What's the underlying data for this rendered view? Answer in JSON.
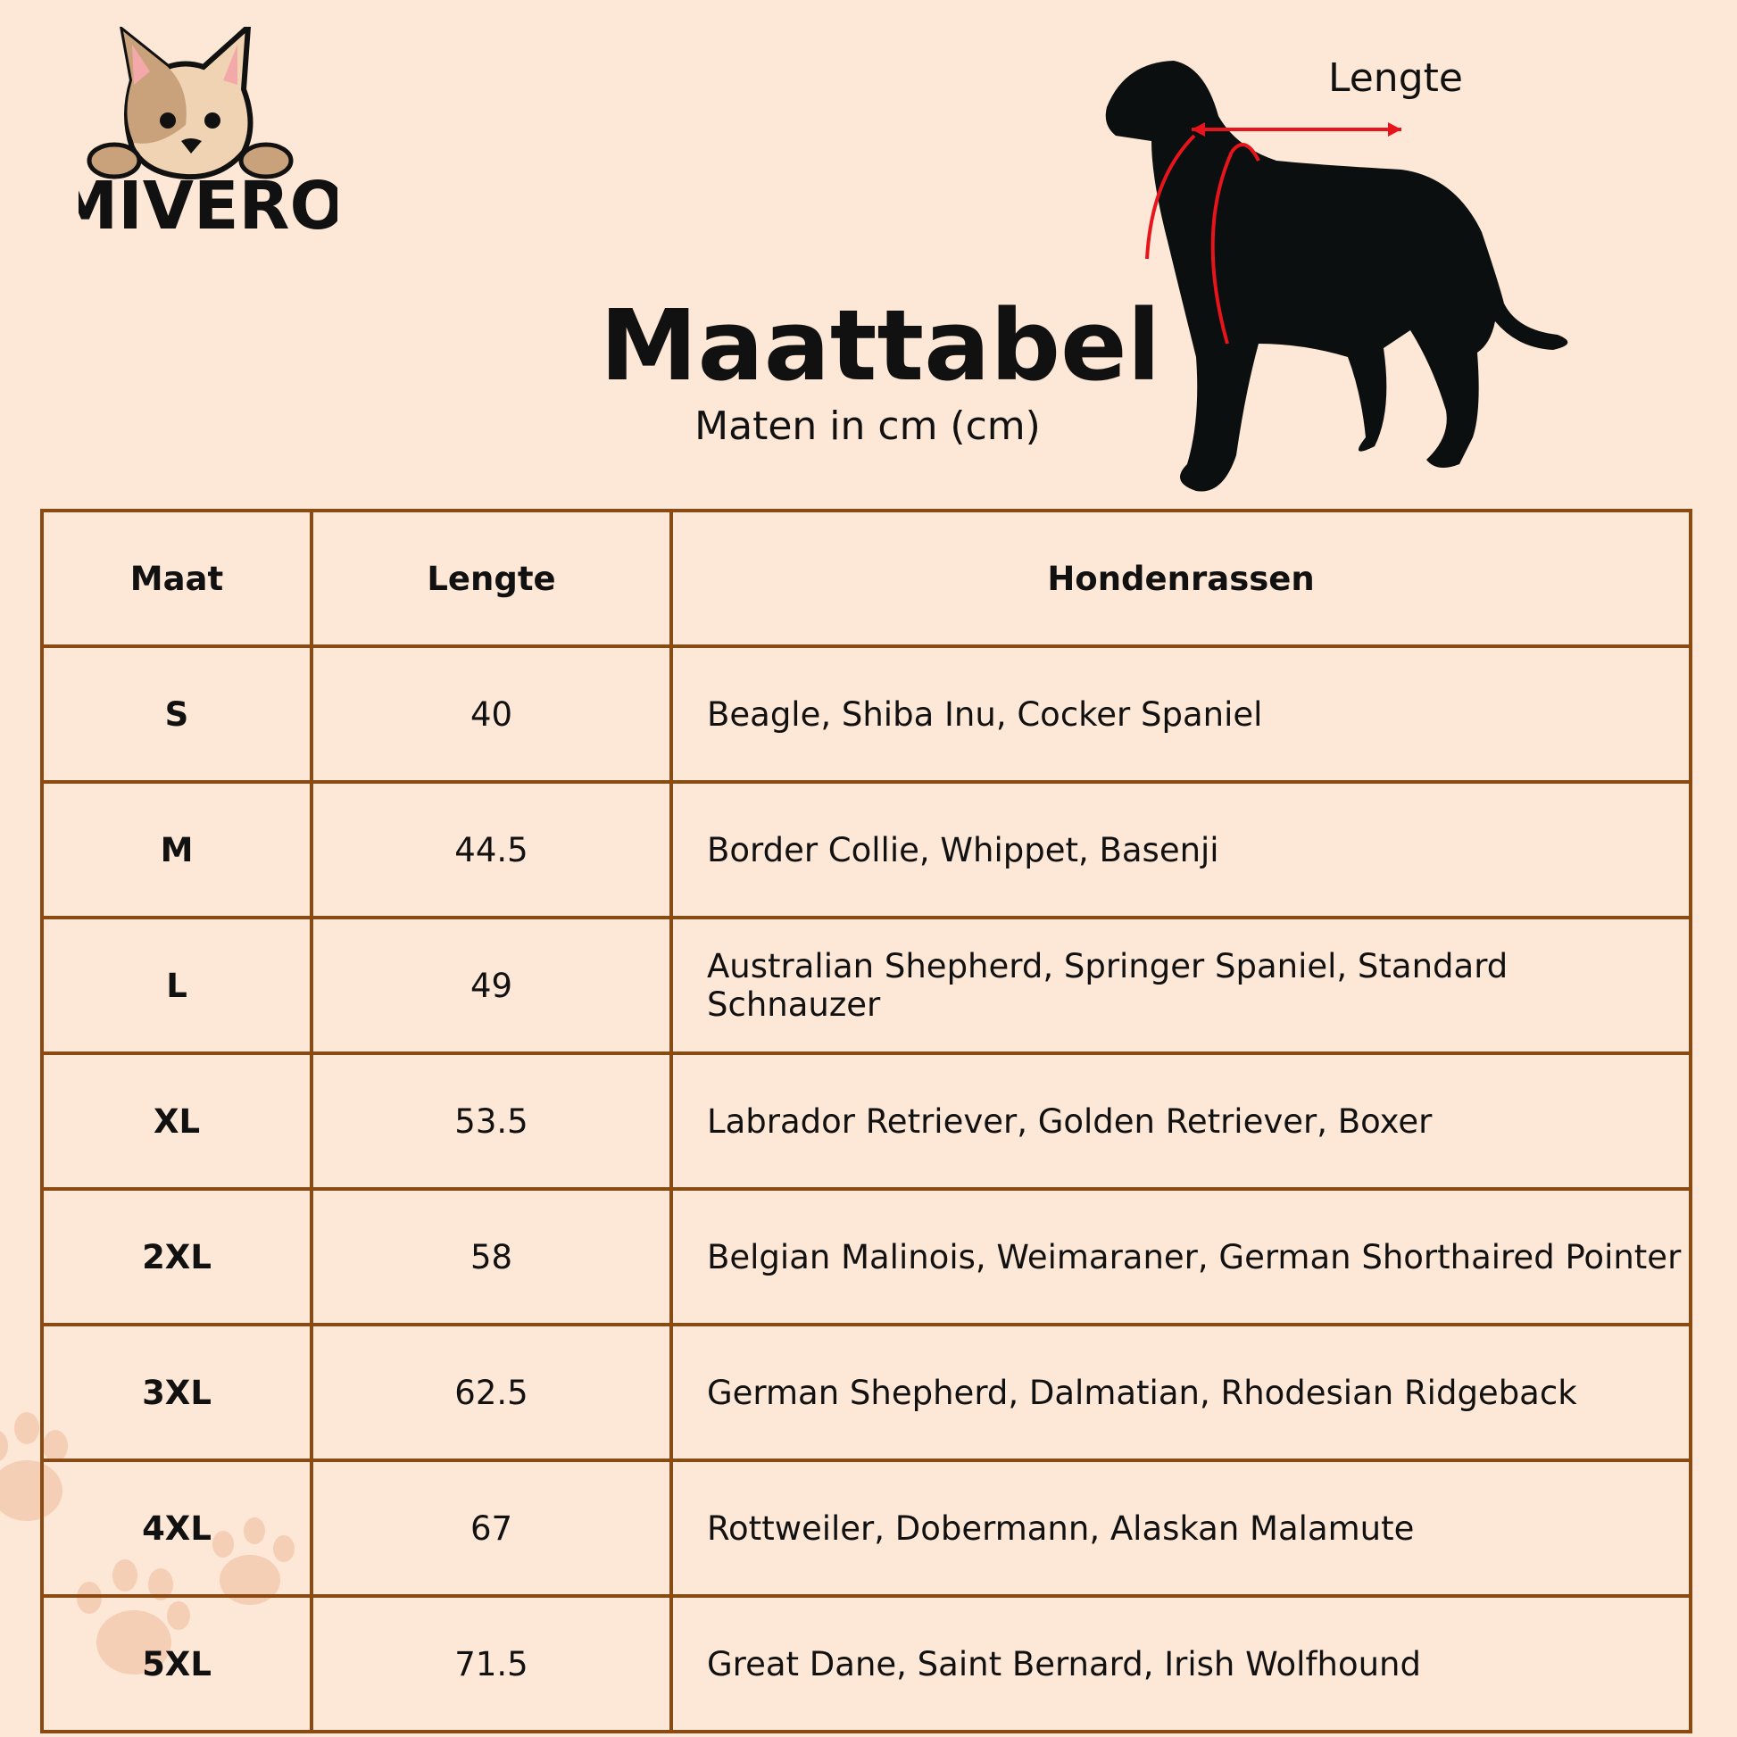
{
  "brand": {
    "logo_text": "MIVERO"
  },
  "header": {
    "title": "Maattabel",
    "subtitle": "Maten in cm (cm)",
    "diagram_label": "Lengte"
  },
  "colors": {
    "background": "#fde7d6",
    "border": "#8a4a14",
    "measure": "#e8141c"
  },
  "table": {
    "columns": [
      "Maat",
      "Lengte",
      "Hondenrassen"
    ],
    "rows": [
      {
        "size": "S",
        "length": "40",
        "breeds": "Beagle, Shiba Inu, Cocker Spaniel"
      },
      {
        "size": "M",
        "length": "44.5",
        "breeds": "Border Collie, Whippet, Basenji"
      },
      {
        "size": "L",
        "length": "49",
        "breeds": "Australian Shepherd, Springer Spaniel, Standard Schnauzer"
      },
      {
        "size": "XL",
        "length": "53.5",
        "breeds": "Labrador Retriever, Golden Retriever, Boxer"
      },
      {
        "size": "2XL",
        "length": "58",
        "breeds": "Belgian Malinois, Weimaraner, German Shorthaired Pointer"
      },
      {
        "size": "3XL",
        "length": "62.5",
        "breeds": "German Shepherd, Dalmatian, Rhodesian Ridgeback"
      },
      {
        "size": "4XL",
        "length": "67",
        "breeds": "Rottweiler, Dobermann, Alaskan Malamute"
      },
      {
        "size": "5XL",
        "length": "71.5",
        "breeds": "Great Dane, Saint Bernard, Irish Wolfhound"
      }
    ]
  }
}
